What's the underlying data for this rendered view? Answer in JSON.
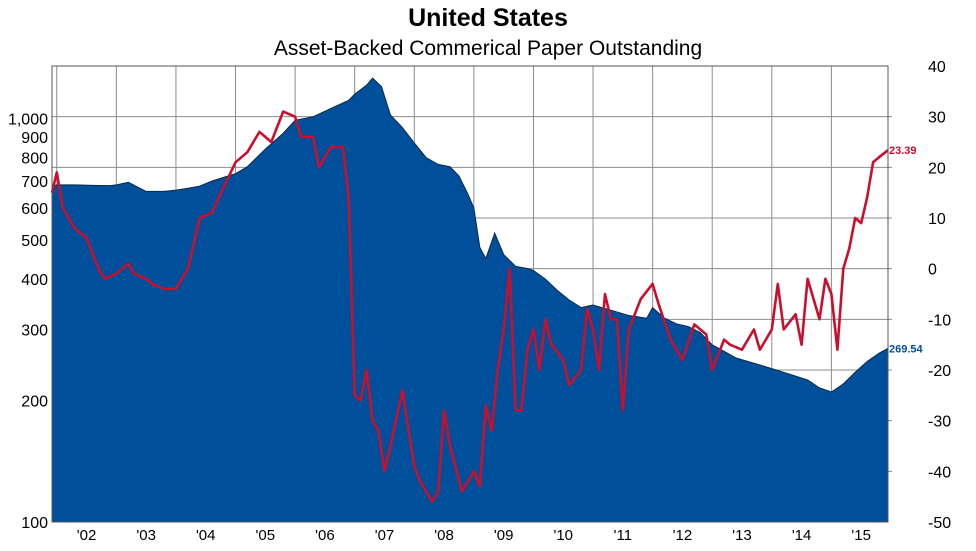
{
  "chart_data": {
    "type": "area",
    "title": "United States",
    "subtitle": "Asset-Backed Commerical Paper Outstanding",
    "x_tick_labels": [
      "'02",
      "'03",
      "'04",
      "'05",
      "'06",
      "'07",
      "'08",
      "'09",
      "'10",
      "'11",
      "'12",
      "'13",
      "'14",
      "'15"
    ],
    "x_range": [
      2001.92,
      2015.95
    ],
    "left_axis": {
      "scale": "log",
      "range": [
        100,
        1350
      ],
      "tick_labels": [
        "100",
        "200",
        "300",
        "400",
        "500",
        "600",
        "700",
        "800",
        "900",
        "1,000"
      ],
      "tick_values": [
        100,
        200,
        300,
        400,
        500,
        600,
        700,
        800,
        900,
        1000
      ]
    },
    "right_axis": {
      "scale": "linear",
      "range": [
        -50,
        40
      ],
      "tick_values": [
        -50,
        -40,
        -30,
        -20,
        -10,
        0,
        10,
        20,
        30,
        40
      ],
      "tick_labels": [
        "-50",
        "-40",
        "-30",
        "-20",
        "-10",
        "0",
        "10",
        "20",
        "30",
        "40"
      ]
    },
    "grid": true,
    "series": [
      {
        "type": "area",
        "axis": "left",
        "color": "#004F9A",
        "end_label": "269.54",
        "x": [
          2001.92,
          2002.0,
          2002.3,
          2002.6,
          2002.9,
          2003.0,
          2003.2,
          2003.5,
          2003.8,
          2004.0,
          2004.2,
          2004.4,
          2004.6,
          2004.8,
          2005.0,
          2005.2,
          2005.5,
          2005.8,
          2006.0,
          2006.3,
          2006.6,
          2006.9,
          2007.0,
          2007.2,
          2007.3,
          2007.45,
          2007.6,
          2007.8,
          2008.0,
          2008.2,
          2008.4,
          2008.6,
          2008.75,
          2008.9,
          2009.0,
          2009.1,
          2009.2,
          2009.35,
          2009.5,
          2009.7,
          2009.9,
          2010.0,
          2010.2,
          2010.4,
          2010.6,
          2010.8,
          2011.0,
          2011.3,
          2011.6,
          2011.9,
          2012.0,
          2012.2,
          2012.4,
          2012.6,
          2012.8,
          2013.0,
          2013.2,
          2013.4,
          2013.6,
          2013.8,
          2014.0,
          2014.2,
          2014.4,
          2014.6,
          2014.8,
          2015.0,
          2015.2,
          2015.4,
          2015.6,
          2015.8,
          2015.95
        ],
        "values": [
          680,
          685,
          685,
          683,
          682,
          685,
          695,
          660,
          660,
          665,
          672,
          680,
          700,
          715,
          730,
          760,
          840,
          920,
          990,
          1010,
          1060,
          1110,
          1150,
          1210,
          1260,
          1200,
          1020,
          950,
          870,
          800,
          770,
          760,
          720,
          650,
          600,
          480,
          450,
          520,
          460,
          430,
          425,
          420,
          400,
          375,
          355,
          340,
          345,
          335,
          325,
          320,
          340,
          320,
          310,
          305,
          295,
          275,
          265,
          255,
          250,
          245,
          240,
          235,
          230,
          225,
          215,
          210,
          220,
          235,
          250,
          262,
          269.54
        ]
      },
      {
        "type": "line",
        "axis": "right",
        "color": "#C8102E",
        "end_label": "23.39",
        "x": [
          2001.92,
          2002.0,
          2002.1,
          2002.3,
          2002.5,
          2002.7,
          2002.8,
          2003.0,
          2003.2,
          2003.3,
          2003.5,
          2003.6,
          2003.8,
          2004.0,
          2004.2,
          2004.4,
          2004.6,
          2004.8,
          2005.0,
          2005.2,
          2005.4,
          2005.6,
          2005.8,
          2006.0,
          2006.1,
          2006.3,
          2006.4,
          2006.6,
          2006.8,
          2006.9,
          2007.0,
          2007.1,
          2007.2,
          2007.3,
          2007.4,
          2007.5,
          2007.6,
          2007.8,
          2008.0,
          2008.1,
          2008.3,
          2008.4,
          2008.5,
          2008.6,
          2008.8,
          2009.0,
          2009.1,
          2009.2,
          2009.3,
          2009.4,
          2009.5,
          2009.6,
          2009.7,
          2009.8,
          2009.9,
          2010.0,
          2010.1,
          2010.2,
          2010.3,
          2010.5,
          2010.6,
          2010.8,
          2010.9,
          2011.0,
          2011.1,
          2011.2,
          2011.3,
          2011.4,
          2011.5,
          2011.6,
          2011.8,
          2012.0,
          2012.1,
          2012.3,
          2012.5,
          2012.7,
          2012.9,
          2013.0,
          2013.2,
          2013.3,
          2013.5,
          2013.7,
          2013.8,
          2014.0,
          2014.1,
          2014.2,
          2014.4,
          2014.5,
          2014.6,
          2014.8,
          2014.9,
          2015.0,
          2015.1,
          2015.2,
          2015.3,
          2015.4,
          2015.5,
          2015.6,
          2015.7,
          2015.8,
          2015.95
        ],
        "values": [
          15,
          19,
          12,
          8,
          6,
          0,
          -2,
          -1,
          1,
          -1,
          -2,
          -3,
          -4,
          -4,
          0,
          10,
          11,
          16,
          21,
          23,
          27,
          25,
          31,
          30,
          26,
          26,
          20,
          24,
          24,
          14,
          -25,
          -26,
          -20,
          -30,
          -32,
          -40,
          -35,
          -24,
          -39,
          -42,
          -46,
          -44,
          -28,
          -35,
          -44,
          -40,
          -43,
          -27,
          -32,
          -20,
          -12,
          0,
          -28,
          -28,
          -16,
          -12,
          -20,
          -10,
          -15,
          -18,
          -23,
          -20,
          -8,
          -12,
          -20,
          -5,
          -10,
          -10,
          -28,
          -12,
          -6,
          -3,
          -7,
          -14,
          -18,
          -11,
          -13,
          -20,
          -14,
          -15,
          -16,
          -12,
          -16,
          -12,
          -3,
          -12,
          -9,
          -15,
          -2,
          -10,
          -2,
          -5,
          -16,
          0,
          4,
          10,
          9,
          14,
          21,
          22,
          23.39
        ]
      }
    ]
  }
}
